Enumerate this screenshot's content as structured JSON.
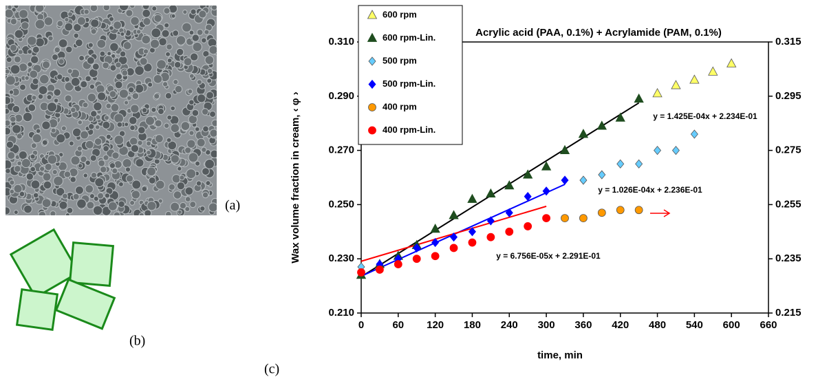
{
  "panel_labels": [
    "(a)",
    "(b)",
    "(c)"
  ],
  "chart_data": {
    "type": "scatter",
    "title": "Acrylic acid (PAA, 0.1%) + Acrylamide (PAM, 0.1%)",
    "x_label": "time, min",
    "y_label": "Wax volume fraction in cream, ‹ φ ›",
    "xlim": [
      0,
      660
    ],
    "xticks": [
      0,
      60,
      120,
      180,
      240,
      300,
      360,
      420,
      480,
      540,
      600,
      660
    ],
    "ylim": [
      0.21,
      0.31
    ],
    "yticks": [
      {
        "value": 0.21,
        "label": "0.210"
      },
      {
        "value": 0.23,
        "label": "0.230"
      },
      {
        "value": 0.25,
        "label": "0.250"
      },
      {
        "value": 0.27,
        "label": "0.270"
      },
      {
        "value": 0.29,
        "label": "0.290"
      },
      {
        "value": 0.31,
        "label": "0.310"
      }
    ],
    "y2lim": [
      0.215,
      0.315
    ],
    "y2ticks": [
      {
        "value": 0.215,
        "label": "0.215"
      },
      {
        "value": 0.235,
        "label": "0.235"
      },
      {
        "value": 0.255,
        "label": "0.255"
      },
      {
        "value": 0.275,
        "label": "0.275"
      },
      {
        "value": 0.295,
        "label": "0.295"
      },
      {
        "value": 0.315,
        "label": "0.315"
      }
    ],
    "legend": "upper left",
    "series": [
      {
        "name": "600 rpm",
        "color": "#ffff66",
        "marker": "triangle",
        "x": [
          480,
          510,
          540,
          570,
          600
        ],
        "values": [
          0.291,
          0.294,
          0.296,
          0.299,
          0.302
        ]
      },
      {
        "name": "600 rpm-Lin.",
        "color": "#1f4d1f",
        "marker": "triangle",
        "x": [
          0,
          30,
          60,
          90,
          120,
          150,
          180,
          210,
          240,
          270,
          300,
          330,
          360,
          390,
          420,
          450
        ],
        "values": [
          0.224,
          0.228,
          0.231,
          0.235,
          0.241,
          0.246,
          0.252,
          0.254,
          0.257,
          0.261,
          0.264,
          0.27,
          0.276,
          0.279,
          0.282,
          0.289
        ]
      },
      {
        "name": "500 rpm",
        "color": "#66ccff",
        "marker": "diamond",
        "x": [
          0,
          360,
          390,
          420,
          450,
          480,
          510,
          540
        ],
        "values": [
          0.227,
          0.259,
          0.261,
          0.265,
          0.265,
          0.27,
          0.27,
          0.276
        ]
      },
      {
        "name": "500 rpm-Lin.",
        "color": "#0000ff",
        "marker": "diamond",
        "x": [
          30,
          60,
          90,
          120,
          150,
          180,
          210,
          240,
          270,
          300,
          330
        ],
        "values": [
          0.228,
          0.23,
          0.234,
          0.236,
          0.238,
          0.24,
          0.244,
          0.247,
          0.253,
          0.255,
          0.259
        ]
      },
      {
        "name": "400 rpm",
        "color": "#ff9900",
        "marker": "circle",
        "x": [
          330,
          360,
          390,
          420,
          450
        ],
        "values": [
          0.245,
          0.245,
          0.247,
          0.248,
          0.248
        ]
      },
      {
        "name": "400 rpm-Lin.",
        "color": "#ff0000",
        "marker": "circle",
        "x": [
          0,
          30,
          60,
          90,
          120,
          150,
          180,
          210,
          240,
          270,
          300
        ],
        "values": [
          0.225,
          0.226,
          0.228,
          0.23,
          0.231,
          0.234,
          0.236,
          0.238,
          0.24,
          0.242,
          0.245
        ]
      }
    ],
    "trendlines": [
      {
        "label": "y = 1.425E-04x + 2.234E-01",
        "slope": 0.0001425,
        "intercept": 0.2234,
        "color": "#000000",
        "x_range": [
          0,
          450
        ]
      },
      {
        "label": "y = 1.026E-04x + 2.236E-01",
        "slope": 0.0001026,
        "intercept": 0.2236,
        "color": "#0000ff",
        "x_range": [
          0,
          330
        ]
      },
      {
        "label": "y = 6.756E-05x + 2.291E-01",
        "slope": 6.756e-05,
        "intercept": 0.2291,
        "color": "#ff0000",
        "x_range": [
          0,
          300
        ]
      }
    ]
  }
}
